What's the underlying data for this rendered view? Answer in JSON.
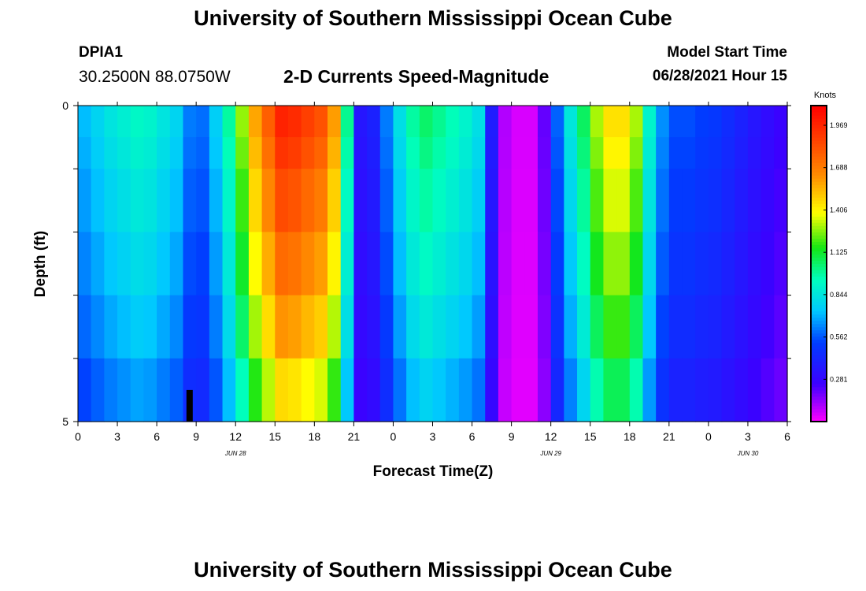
{
  "page": {
    "title_top": "University of Southern Mississippi Ocean Cube",
    "title_bottom": "University of Southern Mississippi Ocean Cube",
    "station_id": "DPIA1",
    "station_coords": "30.2500N  88.0750W",
    "chart_title": "2-D Currents Speed-Magnitude",
    "model_start_label": "Model Start Time",
    "model_start_value": "06/28/2021 Hour 15"
  },
  "colors": {
    "background": "#ffffff",
    "marker": "#000000"
  },
  "chart_data": {
    "type": "heatmap",
    "title": "2-D Currents Speed-Magnitude",
    "xlabel": "Forecast Time(Z)",
    "ylabel": "Depth (ft)",
    "xlim": [
      0,
      54
    ],
    "ylim": [
      0,
      5
    ],
    "x_ticks": [
      0,
      3,
      6,
      9,
      12,
      15,
      18,
      21,
      24,
      27,
      30,
      33,
      36,
      39,
      42,
      45,
      48,
      51,
      54
    ],
    "x_tick_labels": [
      "0",
      "3",
      "6",
      "9",
      "12",
      "15",
      "18",
      "21",
      "0",
      "3",
      "6",
      "9",
      "12",
      "15",
      "18",
      "21",
      "0",
      "3",
      "6"
    ],
    "date_labels": [
      {
        "hour": 12,
        "text": "JUN 28"
      },
      {
        "hour": 36,
        "text": "JUN 29"
      },
      {
        "hour": 51,
        "text": "JUN 30"
      }
    ],
    "y_ticks": [
      0,
      1,
      2,
      3,
      4,
      5
    ],
    "y_tick_labels": [
      "0",
      "",
      "",
      "",
      "",
      "5"
    ],
    "depth_levels": [
      0.25,
      0.75,
      1.5,
      2.5,
      3.5,
      4.5
    ],
    "units": "Knots",
    "colorbar": {
      "min": 0,
      "max": 2.1,
      "ticks": [
        0.281,
        0.562,
        0.844,
        1.125,
        1.406,
        1.688,
        1.969
      ],
      "tick_labels": [
        "0.281",
        "0.562",
        "0.844",
        "1.125",
        "1.406",
        "1.688",
        "1.969"
      ]
    },
    "current_time_marker": {
      "hour": 8.5,
      "depth_from": 4.5,
      "depth_to": 5
    },
    "hours": [
      0,
      1,
      2,
      3,
      4,
      5,
      6,
      7,
      8,
      9,
      10,
      11,
      12,
      13,
      14,
      15,
      16,
      17,
      18,
      19,
      20,
      21,
      22,
      23,
      24,
      25,
      26,
      27,
      28,
      29,
      30,
      31,
      32,
      33,
      34,
      35,
      36,
      37,
      38,
      39,
      40,
      41,
      42,
      43,
      44,
      45,
      46,
      47,
      48,
      49,
      50,
      51,
      52,
      53,
      54
    ],
    "surface_speed": [
      0.72,
      0.78,
      0.84,
      0.88,
      0.92,
      0.9,
      0.84,
      0.78,
      0.62,
      0.6,
      0.76,
      0.98,
      1.28,
      1.58,
      1.78,
      1.98,
      1.95,
      1.88,
      1.82,
      1.6,
      1.0,
      0.35,
      0.4,
      0.62,
      0.82,
      0.98,
      1.05,
      1.0,
      0.95,
      0.9,
      0.82,
      0.38,
      0.1,
      0.05,
      0.05,
      0.2,
      0.58,
      0.85,
      1.06,
      1.3,
      1.45,
      1.45,
      1.3,
      0.9,
      0.65,
      0.55,
      0.55,
      0.52,
      0.5,
      0.45,
      0.4,
      0.35,
      0.3,
      0.26,
      0.22
    ],
    "depth_factor": [
      1.0,
      0.97,
      0.93,
      0.88,
      0.82,
      0.74
    ]
  }
}
